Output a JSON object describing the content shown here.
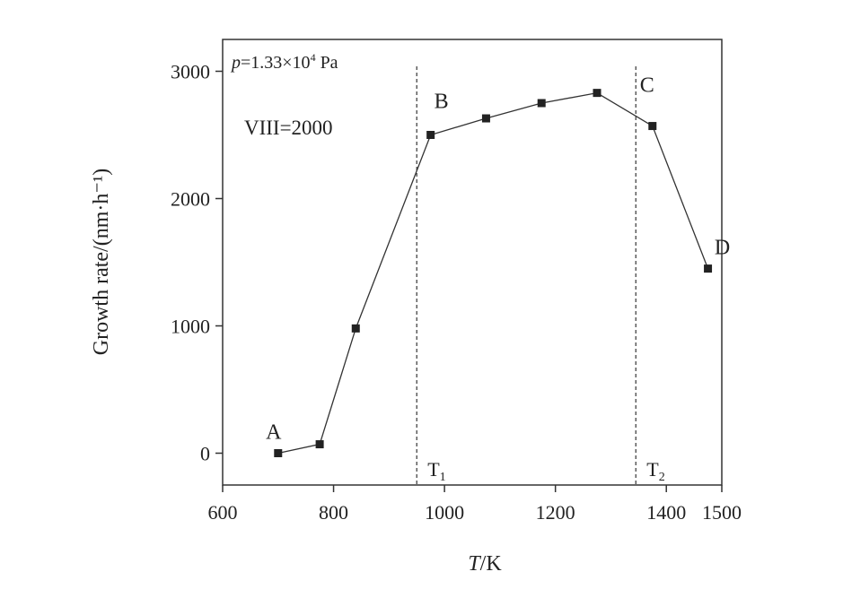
{
  "chart_data": {
    "type": "line",
    "xlabel": "T/K",
    "xlabel_italic": "T",
    "xlabel_unit": "/K",
    "ylabel": "Growth rate/(nm·h⁻¹)",
    "xlim": [
      600,
      1500
    ],
    "ylim": [
      -250,
      3250
    ],
    "xticks": [
      600,
      800,
      1000,
      1200,
      1400,
      1500
    ],
    "yticks": [
      0,
      1000,
      2000,
      3000
    ],
    "grid": false,
    "series": [
      {
        "x": [
          700,
          775,
          840,
          975,
          1075,
          1175,
          1275,
          1375,
          1475
        ],
        "y": [
          0,
          70,
          980,
          2500,
          2630,
          2750,
          2830,
          2570,
          1450
        ]
      }
    ],
    "vlines": [
      {
        "x": 950,
        "label": "T",
        "sub": "1"
      },
      {
        "x": 1345,
        "label": "T",
        "sub": "2"
      }
    ],
    "point_labels": [
      {
        "text": "A",
        "x": 700,
        "y": 0
      },
      {
        "text": "B",
        "x": 975,
        "y": 2500
      },
      {
        "text": "C",
        "x": 1375,
        "y": 2570
      },
      {
        "text": "D",
        "x": 1475,
        "y": 1450
      }
    ],
    "annotations": {
      "pressure": {
        "italic": "p",
        "rest": "=1.33×10",
        "sup": "4",
        "unit": " Pa"
      },
      "ratio": "VIII=2000"
    }
  }
}
